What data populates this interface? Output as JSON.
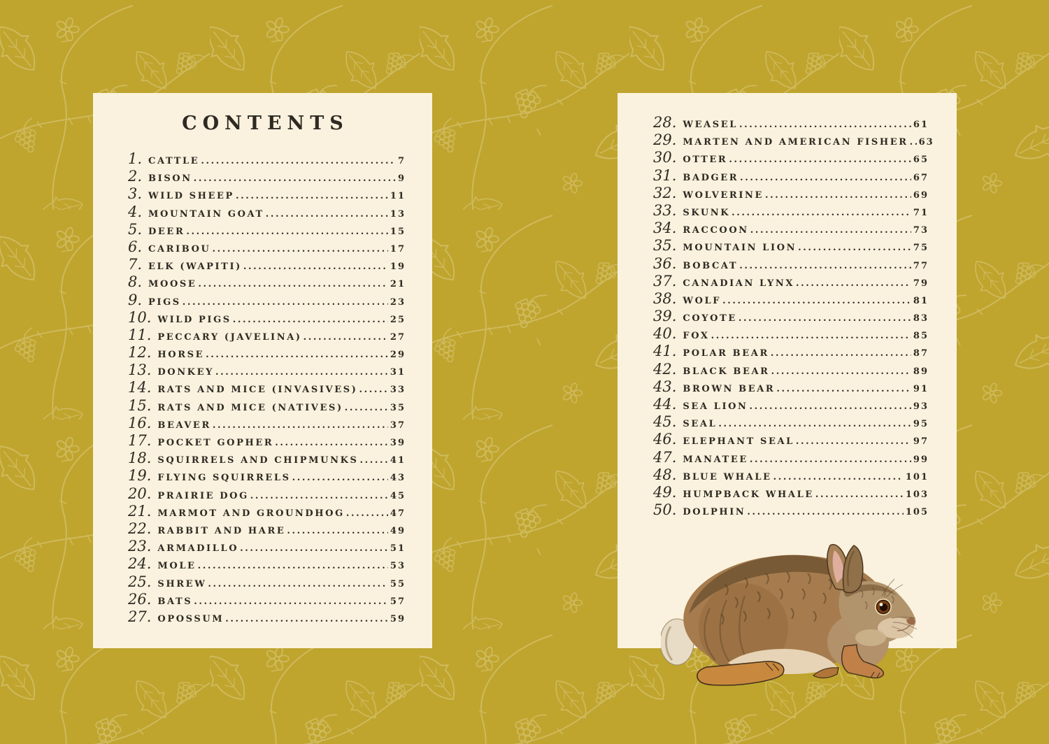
{
  "document": {
    "kind": "book-table-of-contents-spread"
  },
  "colors": {
    "background": "#bfa42e",
    "pattern_line": "#cfba5c",
    "page": "#faf2de",
    "ink": "#2e2a23"
  },
  "left_page": {
    "title": "CONTENTS",
    "entries": [
      {
        "num": "1.",
        "label": "CATTLE",
        "page": "7"
      },
      {
        "num": "2.",
        "label": "BISON",
        "page": "9"
      },
      {
        "num": "3.",
        "label": "WILD SHEEP",
        "page": "11"
      },
      {
        "num": "4.",
        "label": "MOUNTAIN GOAT",
        "page": "13"
      },
      {
        "num": "5.",
        "label": "DEER",
        "page": "15"
      },
      {
        "num": "6.",
        "label": "CARIBOU",
        "page": "17"
      },
      {
        "num": "7.",
        "label": "ELK (WAPITI)",
        "page": "19"
      },
      {
        "num": "8.",
        "label": "MOOSE",
        "page": "21"
      },
      {
        "num": "9.",
        "label": "PIGS",
        "page": "23"
      },
      {
        "num": "10.",
        "label": "WILD PIGS",
        "page": "25"
      },
      {
        "num": "11.",
        "label": "PECCARY (JAVELINA)",
        "page": "27"
      },
      {
        "num": "12.",
        "label": "HORSE",
        "page": "29"
      },
      {
        "num": "13.",
        "label": "DONKEY",
        "page": "31"
      },
      {
        "num": "14.",
        "label": "RATS AND MICE (INVASIVES)",
        "page": "33"
      },
      {
        "num": "15.",
        "label": "RATS AND MICE (NATIVES)",
        "page": "35"
      },
      {
        "num": "16.",
        "label": "BEAVER",
        "page": "37"
      },
      {
        "num": "17.",
        "label": "POCKET GOPHER",
        "page": "39"
      },
      {
        "num": "18.",
        "label": "SQUIRRELS AND CHIPMUNKS",
        "page": "41"
      },
      {
        "num": "19.",
        "label": "FLYING SQUIRRELS",
        "page": "43"
      },
      {
        "num": "20.",
        "label": "PRAIRIE DOG",
        "page": "45"
      },
      {
        "num": "21.",
        "label": "MARMOT AND GROUNDHOG",
        "page": "47"
      },
      {
        "num": "22.",
        "label": "RABBIT AND HARE",
        "page": "49"
      },
      {
        "num": "23.",
        "label": "ARMADILLO",
        "page": "51"
      },
      {
        "num": "24.",
        "label": "MOLE",
        "page": "53"
      },
      {
        "num": "25.",
        "label": "SHREW",
        "page": "55"
      },
      {
        "num": "26.",
        "label": "BATS",
        "page": "57"
      },
      {
        "num": "27.",
        "label": "OPOSSUM",
        "page": "59"
      }
    ]
  },
  "right_page": {
    "entries": [
      {
        "num": "28.",
        "label": "WEASEL",
        "page": "61"
      },
      {
        "num": "29.",
        "label": "MARTEN AND AMERICAN FISHER",
        "page": "63"
      },
      {
        "num": "30.",
        "label": "OTTER",
        "page": "65"
      },
      {
        "num": "31.",
        "label": "BADGER",
        "page": "67"
      },
      {
        "num": "32.",
        "label": "WOLVERINE",
        "page": "69"
      },
      {
        "num": "33.",
        "label": "SKUNK",
        "page": "71"
      },
      {
        "num": "34.",
        "label": "RACCOON",
        "page": "73"
      },
      {
        "num": "35.",
        "label": "MOUNTAIN LION",
        "page": "75"
      },
      {
        "num": "36.",
        "label": "BOBCAT",
        "page": "77"
      },
      {
        "num": "37.",
        "label": "CANADIAN LYNX",
        "page": "79"
      },
      {
        "num": "38.",
        "label": "WOLF",
        "page": "81"
      },
      {
        "num": "39.",
        "label": "COYOTE",
        "page": "83"
      },
      {
        "num": "40.",
        "label": "FOX",
        "page": "85"
      },
      {
        "num": "41.",
        "label": "POLAR BEAR",
        "page": "87"
      },
      {
        "num": "42.",
        "label": "BLACK BEAR",
        "page": "89"
      },
      {
        "num": "43.",
        "label": "BROWN BEAR",
        "page": "91"
      },
      {
        "num": "44.",
        "label": "SEA LION",
        "page": "93"
      },
      {
        "num": "45.",
        "label": "SEAL",
        "page": "95"
      },
      {
        "num": "46.",
        "label": "ELEPHANT SEAL",
        "page": "97"
      },
      {
        "num": "47.",
        "label": "MANATEE",
        "page": "99"
      },
      {
        "num": "48.",
        "label": "BLUE WHALE",
        "page": "101"
      },
      {
        "num": "49.",
        "label": "HUMPBACK WHALE",
        "page": "103"
      },
      {
        "num": "50.",
        "label": "DOLPHIN",
        "page": "105"
      }
    ],
    "illustration": {
      "name": "cottontail-rabbit",
      "description": "Cottontail rabbit sitting, facing right",
      "palette": [
        "#a67c4e",
        "#6d5130",
        "#e7d4b6",
        "#c8893f",
        "#dfae9e"
      ]
    }
  }
}
